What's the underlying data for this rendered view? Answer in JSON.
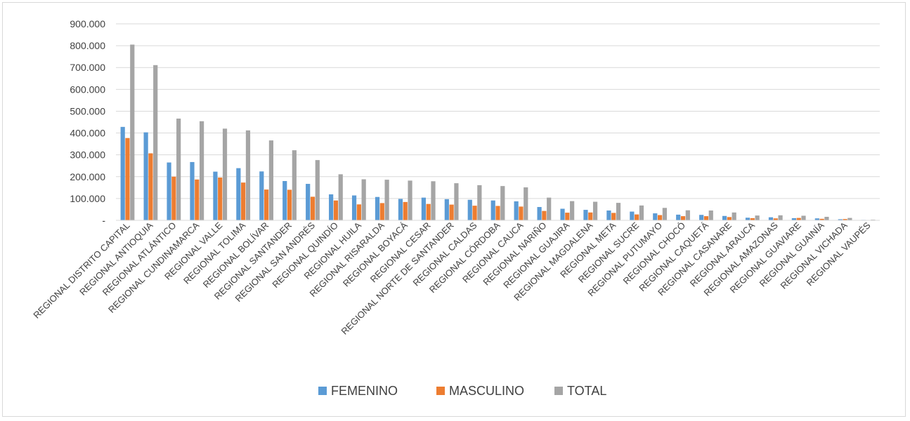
{
  "chart_data": {
    "type": "bar",
    "title": "",
    "xlabel": "",
    "ylabel": "",
    "ylim": [
      0,
      900000
    ],
    "y_ticks": [
      {
        "value": 0,
        "label": "-"
      },
      {
        "value": 100000,
        "label": "100.000"
      },
      {
        "value": 200000,
        "label": "200.000"
      },
      {
        "value": 300000,
        "label": "300.000"
      },
      {
        "value": 400000,
        "label": "400.000"
      },
      {
        "value": 500000,
        "label": "500.000"
      },
      {
        "value": 600000,
        "label": "600.000"
      },
      {
        "value": 700000,
        "label": "700.000"
      },
      {
        "value": 800000,
        "label": "800.000"
      },
      {
        "value": 900000,
        "label": "900.000"
      }
    ],
    "grid": true,
    "legend_position": "bottom",
    "categories": [
      "REGIONAL DISTRITO CAPITAL",
      "REGIONAL ANTIOQUIA",
      "REGIONAL ATLÁNTICO",
      "REGIONAL CUNDINAMARCA",
      "REGIONAL VALLE",
      "REGIONAL TOLIMA",
      "REGIONAL BOLÍVAR",
      "REGIONAL SANTANDER",
      "REGIONAL SAN ANDRÉS",
      "REGIONAL QUINDÍO",
      "REGIONAL HUILA",
      "REGIONAL RISARALDA",
      "REGIONAL BOYACÁ",
      "REGIONAL CESAR",
      "REGIONAL NORTE DE SANTANDER",
      "REGIONAL CALDAS",
      "REGIONAL CÓRDOBA",
      "REGIONAL CAUCA",
      "REGIONAL NARIÑO",
      "REGIONAL GUAJIRA",
      "REGIONAL MAGDALENA",
      "REGIONAL META",
      "REGIONAL SUCRE",
      "REGIONAL PUTUMAYO",
      "REGIONAL CHOCÓ",
      "REGIONAL CAQUETÁ",
      "REGIONAL CASANARE",
      "REGIONAL ARAUCA",
      "REGIONAL AMAZONAS",
      "REGIONAL GUAVIARE",
      "REGIONAL GUAINÍA",
      "REGIONAL VICHADA",
      "REGIONAL VAUPÉS"
    ],
    "series": [
      {
        "name": "FEMENINO",
        "color": "#5b9bd5",
        "values": [
          428000,
          403000,
          265000,
          267000,
          223000,
          239000,
          224000,
          180000,
          167000,
          119000,
          114000,
          107000,
          98000,
          104000,
          97000,
          94000,
          91000,
          87000,
          61000,
          53000,
          48000,
          45000,
          40000,
          32000,
          26000,
          25000,
          20000,
          12000,
          14000,
          10000,
          9000,
          5000,
          2000
        ]
      },
      {
        "name": "MASCULINO",
        "color": "#ed7d31",
        "values": [
          377000,
          307000,
          200000,
          187000,
          196000,
          173000,
          141000,
          140000,
          108000,
          91000,
          73000,
          79000,
          84000,
          75000,
          72000,
          67000,
          66000,
          63000,
          43000,
          35000,
          36000,
          34000,
          27000,
          24000,
          19000,
          19000,
          15000,
          10000,
          9000,
          11000,
          7000,
          6000,
          1000
        ]
      },
      {
        "name": "TOTAL",
        "color": "#a5a5a5",
        "values": [
          805000,
          711000,
          466000,
          454000,
          420000,
          412000,
          366000,
          321000,
          276000,
          211000,
          188000,
          186000,
          182000,
          179000,
          170000,
          161000,
          157000,
          151000,
          104000,
          88000,
          85000,
          80000,
          68000,
          57000,
          46000,
          45000,
          36000,
          22000,
          23000,
          21000,
          16000,
          11000,
          3000
        ]
      }
    ]
  }
}
